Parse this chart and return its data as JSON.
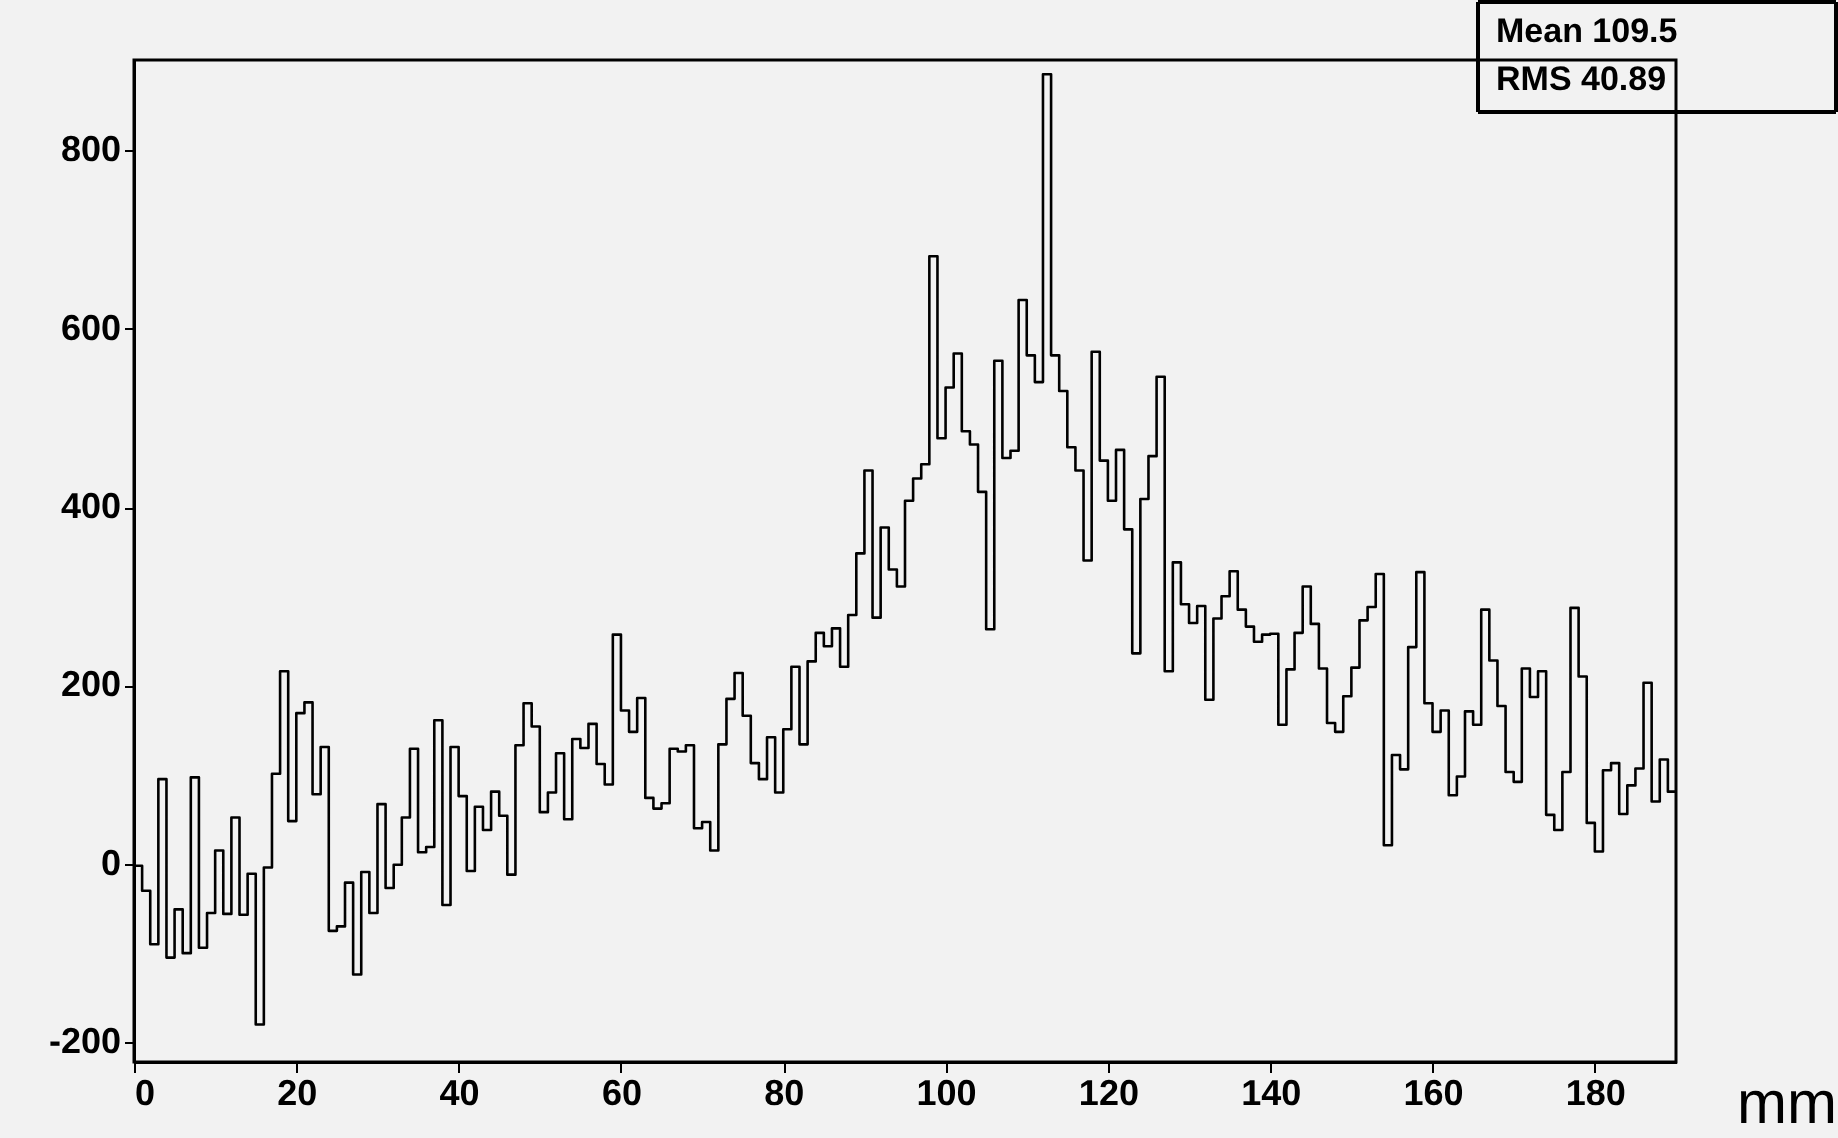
{
  "chart_data": {
    "type": "histogram",
    "xlabel": "mm",
    "bins": [
      0,
      1,
      2,
      3,
      4,
      5,
      6,
      7,
      8,
      9,
      10,
      11,
      12,
      13,
      14,
      15,
      16,
      17,
      18,
      19,
      20,
      21,
      22,
      23,
      24,
      25,
      26,
      27,
      28,
      29,
      30,
      31,
      32,
      33,
      34,
      35,
      36,
      37,
      38,
      39,
      40,
      41,
      42,
      43,
      44,
      45,
      46,
      47,
      48,
      49,
      50,
      51,
      52,
      53,
      54,
      55,
      56,
      57,
      58,
      59,
      60,
      61,
      62,
      63,
      64,
      65,
      66,
      67,
      68,
      69,
      70,
      71,
      72,
      73,
      74,
      75,
      76,
      77,
      78,
      79,
      80,
      81,
      82,
      83,
      84,
      85,
      86,
      87,
      88,
      89,
      90,
      91,
      92,
      93,
      94,
      95,
      96,
      97,
      98,
      99,
      100,
      101,
      102,
      103,
      104,
      105,
      106,
      107,
      108,
      109,
      110,
      111,
      112,
      113,
      114,
      115,
      116,
      117,
      118,
      119,
      120,
      121,
      122,
      123,
      124,
      125,
      126,
      127,
      128,
      129,
      130,
      131,
      132,
      133,
      134,
      135,
      136,
      137,
      138,
      139,
      140,
      141,
      142,
      143,
      144,
      145,
      146,
      147,
      148,
      149,
      150,
      151,
      152,
      153,
      154,
      155,
      156,
      157,
      158,
      159,
      160,
      161,
      162,
      163,
      164,
      165,
      166,
      167,
      168,
      169,
      170,
      171,
      172,
      173,
      174,
      175,
      176,
      177,
      178,
      179,
      180,
      181,
      182,
      183,
      184,
      185,
      186,
      187,
      188,
      189,
      190
    ],
    "values": [
      -2,
      -30,
      -90,
      95,
      -105,
      -51,
      -100,
      97,
      -94,
      -55,
      15,
      -56,
      52,
      -57,
      -11,
      -180,
      -4,
      101,
      216,
      48,
      169,
      181,
      78,
      131,
      -75,
      -70,
      -21,
      -124,
      -9,
      -55,
      67,
      -27,
      -1,
      52,
      129,
      13,
      19,
      161,
      -46,
      131,
      76,
      -8,
      64,
      38,
      81,
      54,
      -12,
      133,
      180,
      154,
      58,
      80,
      124,
      50,
      140,
      130,
      157,
      112,
      89,
      257,
      172,
      148,
      186,
      74,
      62,
      68,
      129,
      126,
      133,
      40,
      47,
      15,
      134,
      185,
      214,
      166,
      113,
      95,
      142,
      80,
      151,
      221,
      134,
      227,
      259,
      244,
      264,
      221,
      279,
      348,
      441,
      276,
      377,
      330,
      311,
      407,
      432,
      448,
      681,
      477,
      534,
      572,
      485,
      470,
      417,
      263,
      564,
      455,
      463,
      632,
      570,
      540,
      885,
      570,
      530,
      467,
      441,
      340,
      574,
      452,
      407,
      464,
      375,
      236,
      409,
      457,
      546,
      216,
      338,
      291,
      270,
      289,
      184,
      275,
      300,
      328,
      285,
      266,
      249,
      257,
      258,
      156,
      218,
      259,
      311,
      269,
      219,
      158,
      148,
      188,
      220,
      273,
      288,
      325,
      21,
      122,
      106,
      243,
      327,
      180,
      148,
      172,
      77,
      98,
      171,
      156,
      285,
      228,
      177,
      103,
      92,
      219,
      187,
      216,
      55,
      38,
      103,
      287,
      210,
      46,
      14,
      105,
      113,
      56,
      88,
      107,
      203,
      70,
      117,
      81
    ],
    "color": "#000000",
    "xlim": [
      0,
      190
    ],
    "ylim": [
      -222,
      901
    ],
    "xticks": [
      0,
      20,
      40,
      60,
      80,
      100,
      120,
      140,
      160,
      180
    ],
    "yticks": [
      -200,
      0,
      200,
      400,
      600,
      800
    ],
    "grid": false,
    "annotations": [
      "Mean 109.5",
      "RMS 40.89"
    ]
  }
}
